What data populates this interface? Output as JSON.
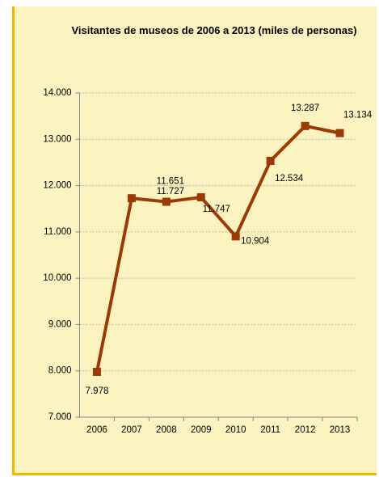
{
  "chart_data": {
    "type": "line",
    "title": "Visitantes de museos de 2006 a 2013 (miles de personas)",
    "categories": [
      "2006",
      "2007",
      "2008",
      "2009",
      "2010",
      "2011",
      "2012",
      "2013"
    ],
    "series": [
      {
        "name": "Visitantes",
        "color": "#9c3a06",
        "values": [
          7978,
          11727,
          11651,
          11747,
          10904,
          12534,
          13287,
          13134
        ],
        "value_labels": [
          "7.978",
          "11.727",
          "11.651",
          "11.747",
          "10.904",
          "12.534",
          "13.287",
          "13.134"
        ]
      }
    ],
    "ylim": [
      7000,
      14000
    ],
    "yticks": [
      {
        "value": 7000,
        "label": "7.000"
      },
      {
        "value": 8000,
        "label": "8.000"
      },
      {
        "value": 9000,
        "label": "9.000"
      },
      {
        "value": 10000,
        "label": "10.000"
      },
      {
        "value": 11000,
        "label": "11.000"
      },
      {
        "value": 12000,
        "label": "12.000"
      },
      {
        "value": 13000,
        "label": "13.000"
      },
      {
        "value": 14000,
        "label": "14.000"
      }
    ],
    "grid": true
  }
}
